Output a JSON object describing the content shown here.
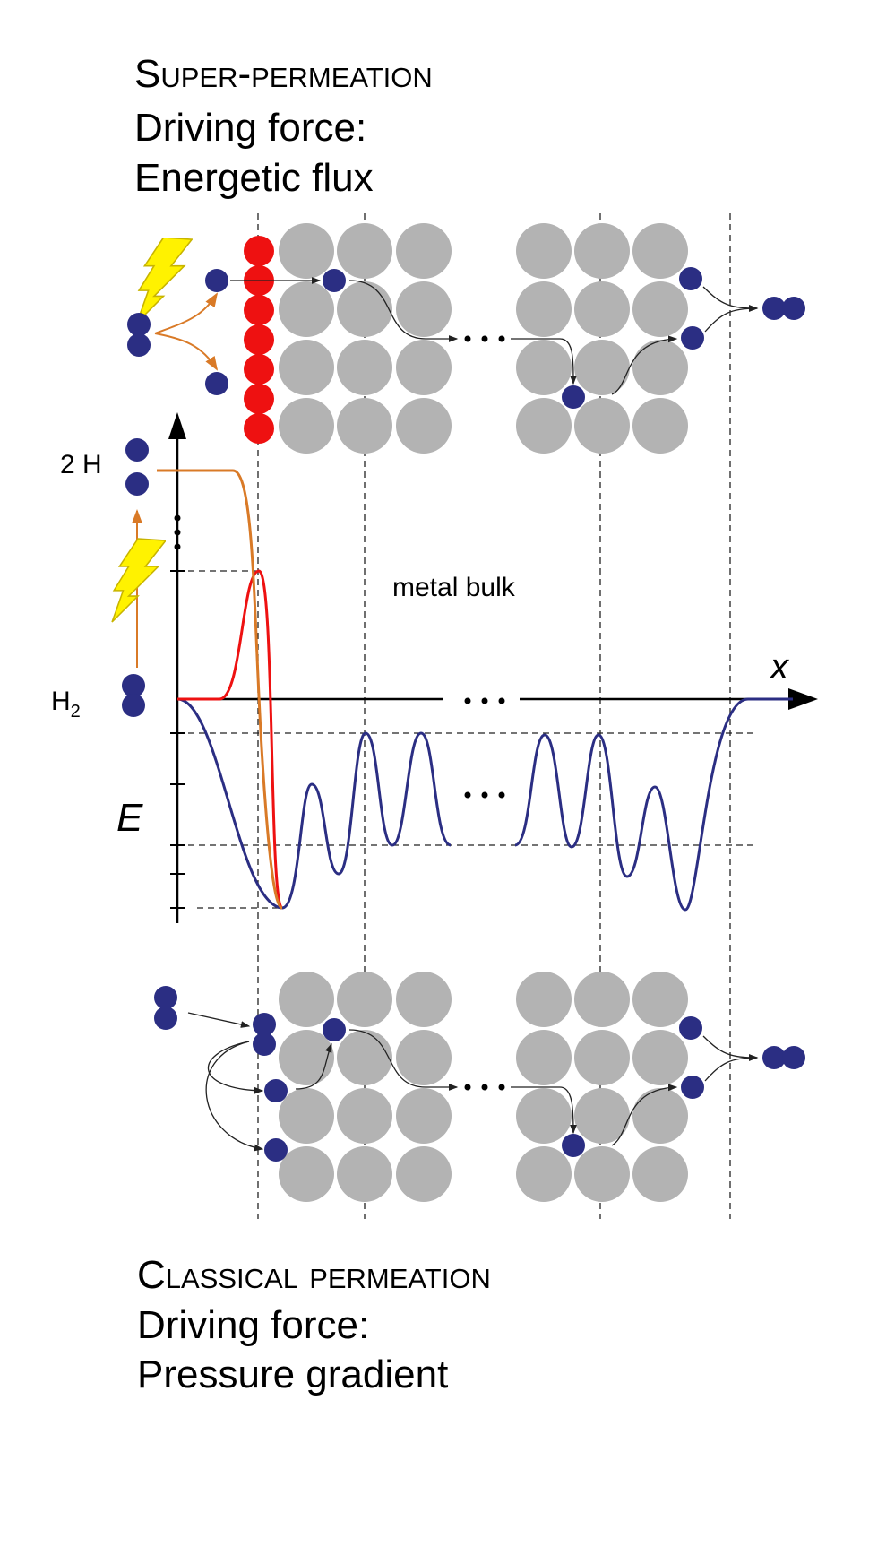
{
  "top": {
    "title": "Super-permeation",
    "line1": "Driving force:",
    "line2": "Energetic flux"
  },
  "graph": {
    "label_2h": "2 H",
    "label_h2": "H",
    "label_h2_sub": "2",
    "bulk": "metal bulk",
    "x_axis": "x",
    "y_axis": "E"
  },
  "bottom": {
    "title": "Classical permeation",
    "line1": "Driving force:",
    "line2": "Pressure gradient"
  }
}
